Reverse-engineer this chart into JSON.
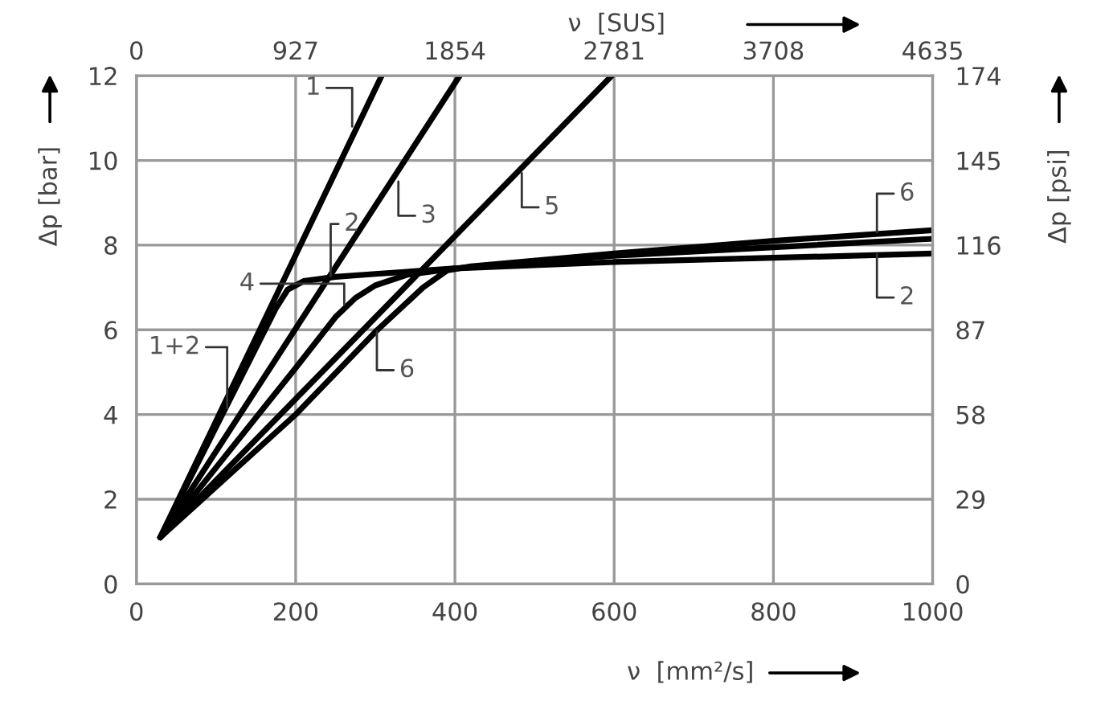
{
  "chart_data": {
    "type": "line",
    "xlabel": "ν  [mm²/s]",
    "ylabel": "Δp [bar]",
    "y2label": "Δp [psi]",
    "x2label": "ν  [SUS]",
    "xlim": [
      0,
      1000
    ],
    "xticks": [
      0,
      200,
      400,
      600,
      800,
      1000
    ],
    "ylim": [
      0,
      12
    ],
    "yticks": [
      0,
      2,
      4,
      6,
      8,
      10,
      12
    ],
    "x2lim": [
      0,
      4635
    ],
    "x2ticks": [
      0,
      927,
      1854,
      2781,
      3708,
      4635
    ],
    "y2lim": [
      0,
      174
    ],
    "y2ticks": [
      0,
      29,
      58,
      87,
      116,
      145,
      174
    ],
    "grid": true,
    "line_style": "solid",
    "marker": "none",
    "series": [
      {
        "color": "#000000",
        "x": [
          30,
          308
        ],
        "values": [
          1.1,
          12
        ]
      },
      {
        "color": "#000000",
        "x": [
          30,
          175,
          190,
          210,
          250,
          300,
          400,
          600,
          800,
          1000
        ],
        "values": [
          1.1,
          6.5,
          6.95,
          7.15,
          7.25,
          7.32,
          7.45,
          7.6,
          7.7,
          7.8
        ]
      },
      {
        "color": "#000000",
        "x": [
          30,
          406
        ],
        "values": [
          1.1,
          12
        ]
      },
      {
        "color": "#000000",
        "x": [
          30,
          200,
          250,
          275,
          300,
          340,
          400,
          600,
          800,
          1000
        ],
        "values": [
          1.1,
          5.1,
          6.3,
          6.75,
          7.05,
          7.3,
          7.45,
          7.75,
          7.95,
          8.15
        ]
      },
      {
        "color": "#000000",
        "x": [
          30,
          597
        ],
        "values": [
          1.1,
          12
        ]
      },
      {
        "color": "#000000",
        "x": [
          30,
          200,
          300,
          360,
          390,
          420,
          600,
          800,
          1000
        ],
        "values": [
          1.1,
          4.0,
          5.95,
          7.0,
          7.4,
          7.5,
          7.8,
          8.1,
          8.35
        ]
      }
    ],
    "annotations": [
      {
        "text": "1",
        "x": 271,
        "y": 10.8
      },
      {
        "text": "3",
        "x": 329,
        "y": 9.5
      },
      {
        "text": "5",
        "x": 484,
        "y": 9.7
      },
      {
        "text": "2",
        "x": 244,
        "y": 7.27
      },
      {
        "text": "4",
        "x": 261,
        "y": 6.6
      },
      {
        "text": "6",
        "x": 302,
        "y": 5.96
      },
      {
        "text": "1+2",
        "x": 114,
        "y": 4.15
      },
      {
        "text": "6",
        "x": 930,
        "y": 8.3
      },
      {
        "text": "2",
        "x": 930,
        "y": 7.78
      }
    ]
  }
}
